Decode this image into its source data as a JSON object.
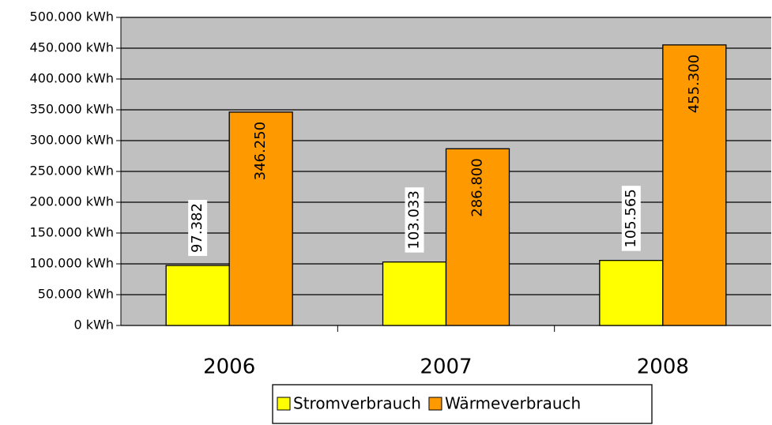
{
  "chart_data": {
    "type": "bar",
    "categories": [
      "2006",
      "2007",
      "2008"
    ],
    "series": [
      {
        "name": "Stromverbrauch",
        "color": "#ffff00",
        "values": [
          97382,
          103033,
          105565
        ],
        "value_labels": [
          "97.382",
          "103.033",
          "105.565"
        ]
      },
      {
        "name": "Wärmeverbrauch",
        "color": "#ff9900",
        "values": [
          346250,
          286800,
          455300
        ],
        "value_labels": [
          "346.250",
          "286.800",
          "455.300"
        ]
      }
    ],
    "ylim": [
      0,
      500000
    ],
    "yticks": [
      {
        "value": 0,
        "label": "0 kWh"
      },
      {
        "value": 50000,
        "label": "50.000 kWh"
      },
      {
        "value": 100000,
        "label": "100.000 kWh"
      },
      {
        "value": 150000,
        "label": "150.000 kWh"
      },
      {
        "value": 200000,
        "label": "200.000 kWh"
      },
      {
        "value": 250000,
        "label": "250.000 kWh"
      },
      {
        "value": 300000,
        "label": "300.000 kWh"
      },
      {
        "value": 350000,
        "label": "350.000 kWh"
      },
      {
        "value": 400000,
        "label": "400.000 kWh"
      },
      {
        "value": 450000,
        "label": "450.000 kWh"
      },
      {
        "value": 500000,
        "label": "500.000 kWh"
      }
    ],
    "grid": true,
    "background": "#c0c0c0",
    "legend": "bottom"
  }
}
